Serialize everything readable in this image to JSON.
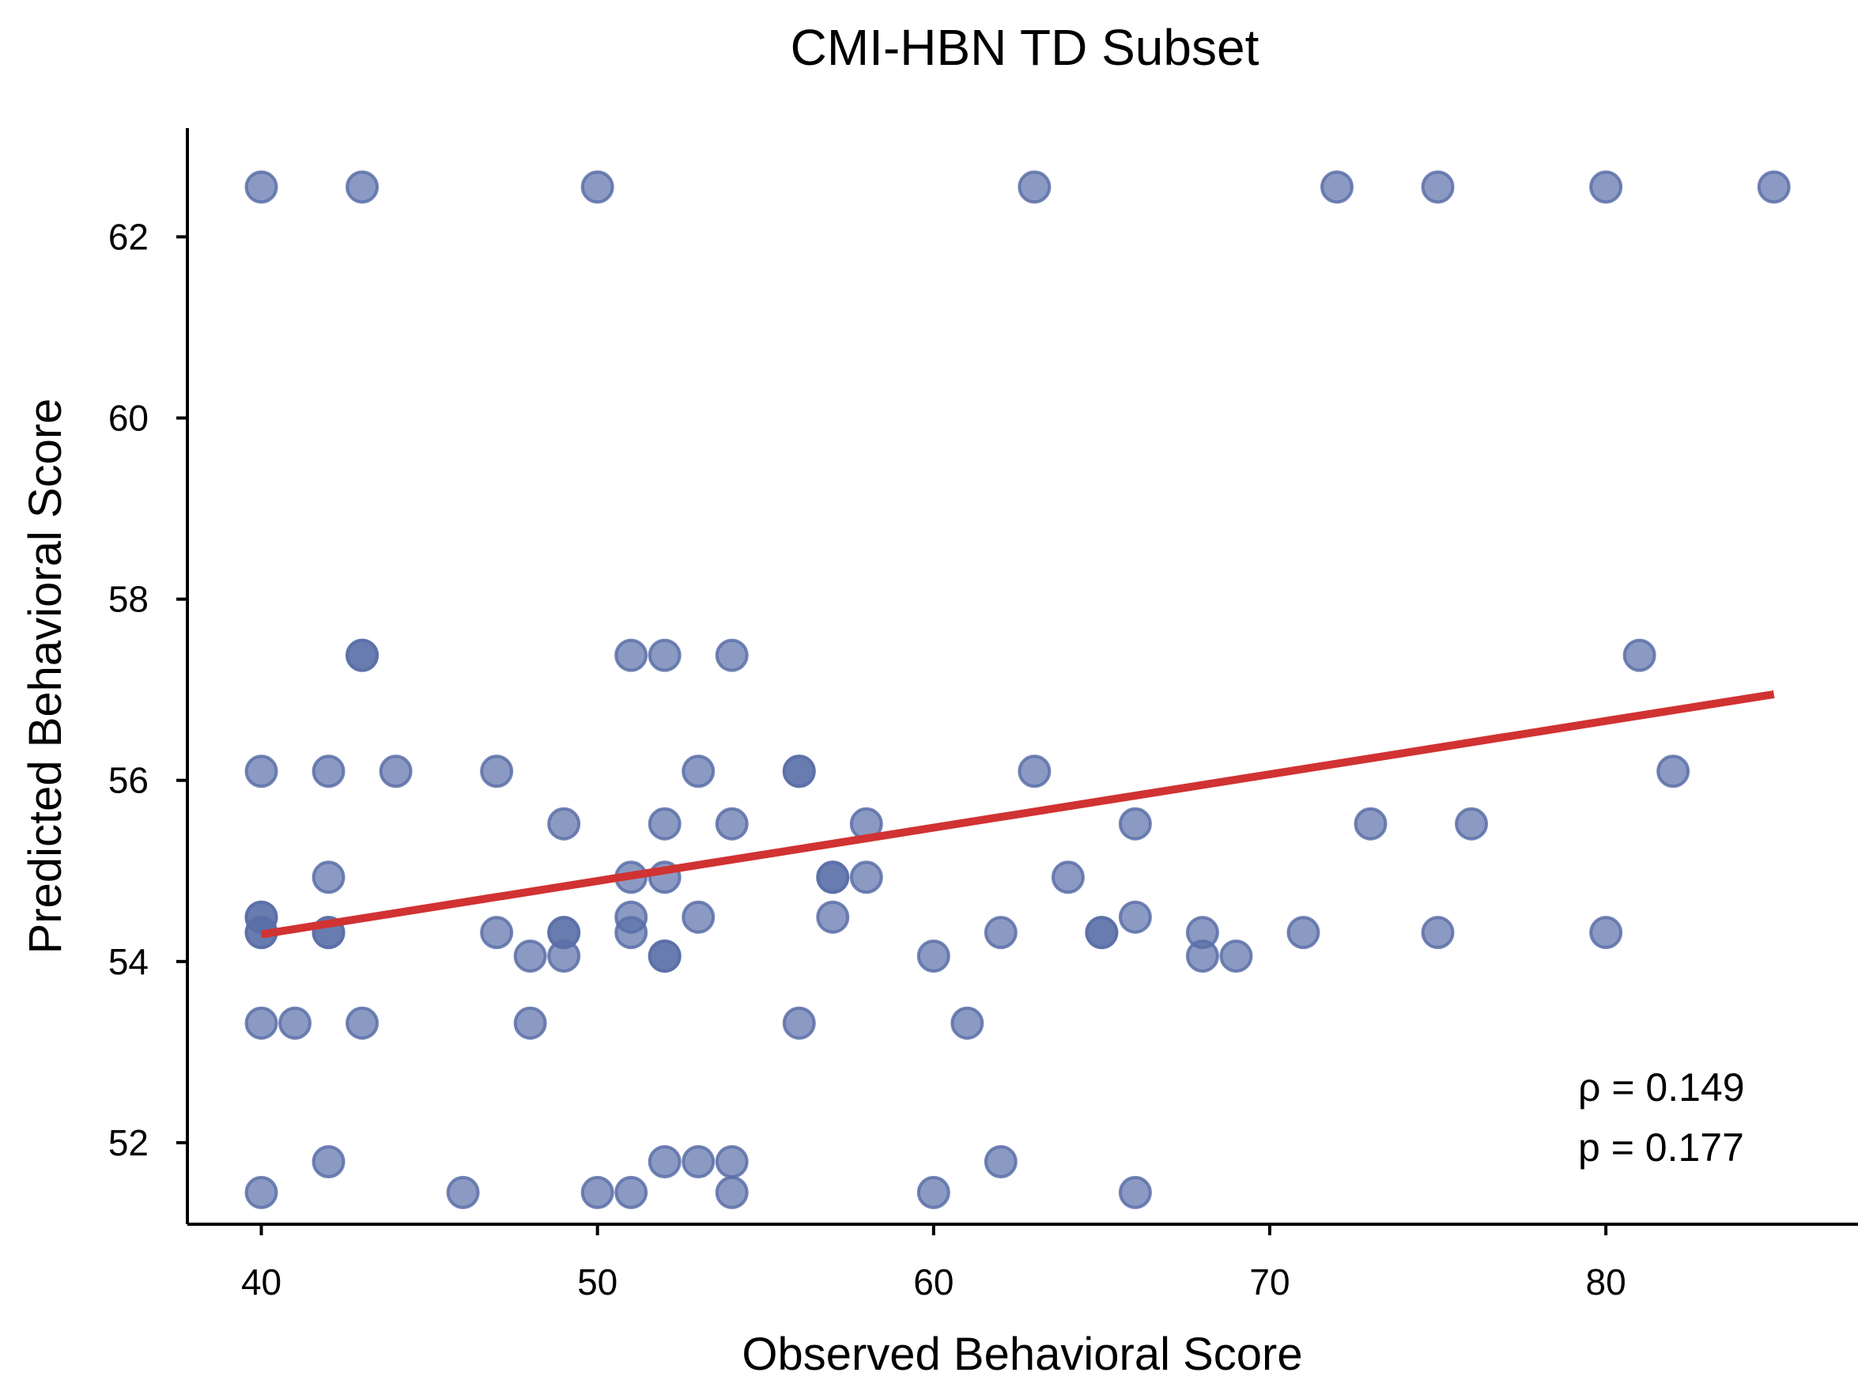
{
  "chart_data": {
    "type": "scatter",
    "title": "CMI-HBN TD Subset",
    "xlabel": "Observed Behavioral Score",
    "ylabel": "Predicted Behavioral Score",
    "xlim": [
      37.8,
      87.5
    ],
    "ylim": [
      51.1,
      63.2
    ],
    "xticks": [
      40,
      50,
      60,
      70,
      80
    ],
    "yticks": [
      52,
      54,
      56,
      58,
      60,
      62
    ],
    "grid": false,
    "point_color": "#5a6fa8",
    "line_color": "#d13232",
    "points": [
      [
        40,
        62.55
      ],
      [
        43,
        62.55
      ],
      [
        50,
        62.55
      ],
      [
        63,
        62.55
      ],
      [
        72,
        62.55
      ],
      [
        75,
        62.55
      ],
      [
        80,
        62.55
      ],
      [
        85,
        62.55
      ],
      [
        43,
        57.38
      ],
      [
        43,
        57.38
      ],
      [
        51,
        57.38
      ],
      [
        52,
        57.38
      ],
      [
        54,
        57.38
      ],
      [
        81,
        57.38
      ],
      [
        40,
        56.1
      ],
      [
        42,
        56.1
      ],
      [
        44,
        56.1
      ],
      [
        47,
        56.1
      ],
      [
        53,
        56.1
      ],
      [
        56,
        56.1
      ],
      [
        56,
        56.1
      ],
      [
        63,
        56.1
      ],
      [
        82,
        56.1
      ],
      [
        49,
        55.52
      ],
      [
        52,
        55.52
      ],
      [
        54,
        55.52
      ],
      [
        58,
        55.52
      ],
      [
        66,
        55.52
      ],
      [
        73,
        55.52
      ],
      [
        76,
        55.52
      ],
      [
        42,
        54.93
      ],
      [
        51,
        54.93
      ],
      [
        52,
        54.93
      ],
      [
        57,
        54.93
      ],
      [
        57,
        54.93
      ],
      [
        58,
        54.93
      ],
      [
        64,
        54.93
      ],
      [
        40,
        54.49
      ],
      [
        40,
        54.49
      ],
      [
        51,
        54.49
      ],
      [
        53,
        54.49
      ],
      [
        57,
        54.49
      ],
      [
        66,
        54.49
      ],
      [
        40,
        54.32
      ],
      [
        40,
        54.32
      ],
      [
        42,
        54.32
      ],
      [
        42,
        54.32
      ],
      [
        47,
        54.32
      ],
      [
        49,
        54.32
      ],
      [
        49,
        54.32
      ],
      [
        51,
        54.32
      ],
      [
        62,
        54.32
      ],
      [
        65,
        54.32
      ],
      [
        65,
        54.32
      ],
      [
        68,
        54.32
      ],
      [
        71,
        54.32
      ],
      [
        75,
        54.32
      ],
      [
        80,
        54.32
      ],
      [
        48,
        54.06
      ],
      [
        49,
        54.06
      ],
      [
        52,
        54.06
      ],
      [
        52,
        54.06
      ],
      [
        60,
        54.06
      ],
      [
        68,
        54.06
      ],
      [
        69,
        54.06
      ],
      [
        40,
        53.32
      ],
      [
        41,
        53.32
      ],
      [
        43,
        53.32
      ],
      [
        48,
        53.32
      ],
      [
        56,
        53.32
      ],
      [
        61,
        53.32
      ],
      [
        42,
        51.79
      ],
      [
        52,
        51.79
      ],
      [
        53,
        51.79
      ],
      [
        54,
        51.79
      ],
      [
        62,
        51.79
      ],
      [
        40,
        51.45
      ],
      [
        46,
        51.45
      ],
      [
        50,
        51.45
      ],
      [
        51,
        51.45
      ],
      [
        54,
        51.45
      ],
      [
        60,
        51.45
      ],
      [
        66,
        51.45
      ]
    ],
    "fit_line": {
      "x": [
        40,
        85
      ],
      "y": [
        54.3,
        56.95
      ]
    },
    "annotations": [
      "ρ = 0.149",
      "p = 0.177"
    ]
  }
}
